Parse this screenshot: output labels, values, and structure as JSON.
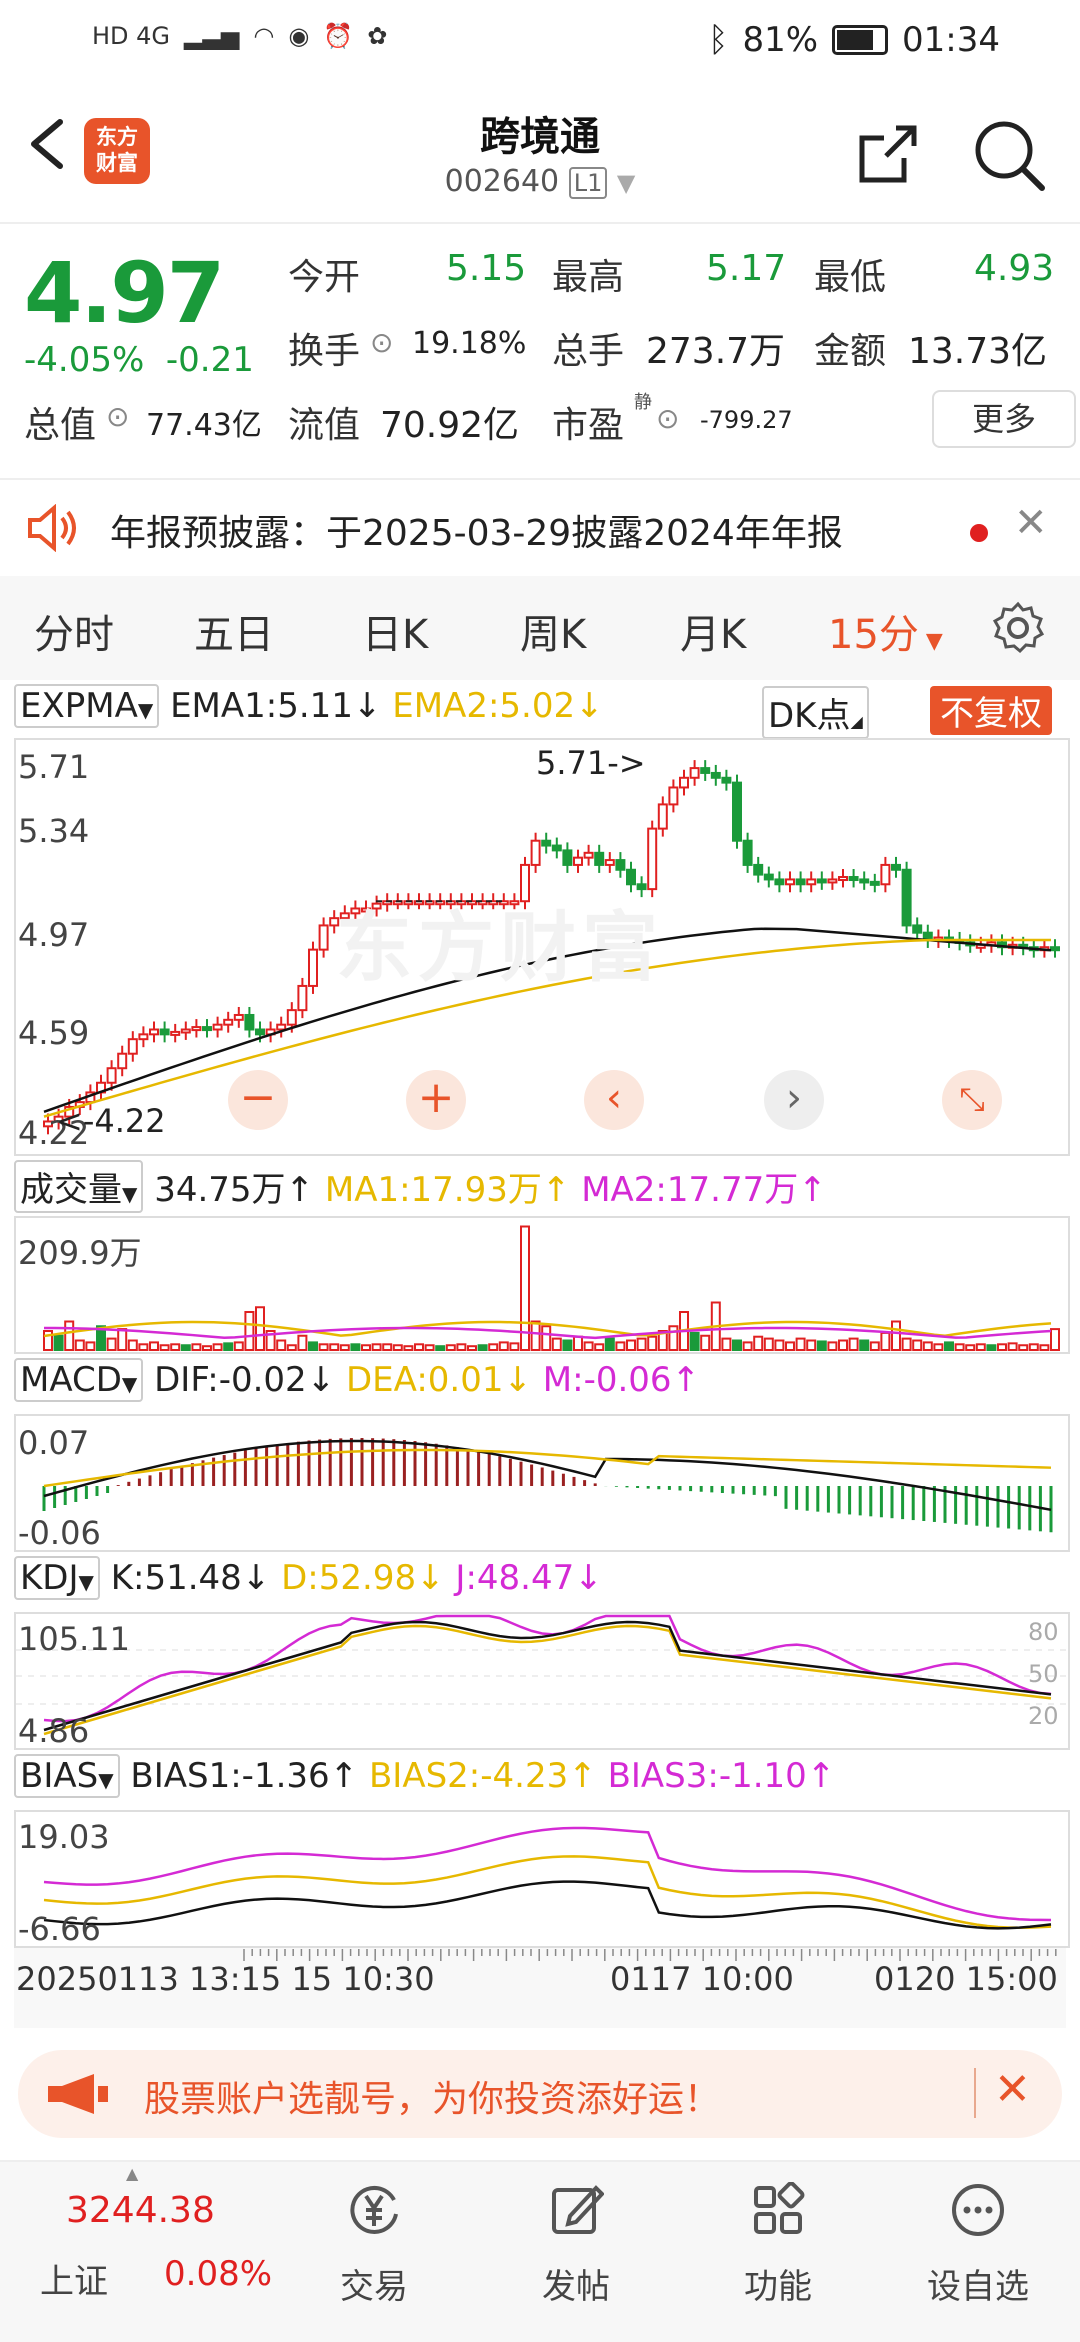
{
  "status": {
    "left_icons": "HD 4G",
    "battery": "81%",
    "time": "01:34"
  },
  "header": {
    "title": "跨境通",
    "code": "002640",
    "level": "L1",
    "logo_line1": "东方",
    "logo_line2": "财富"
  },
  "quote": {
    "price": "4.97",
    "pct": "-4.05%",
    "chg": "-0.21",
    "open_label": "今开",
    "open": "5.15",
    "high_label": "最高",
    "high": "5.17",
    "low_label": "最低",
    "low": "4.93",
    "turnover_label": "换手",
    "turnover": "19.18%",
    "volume_label": "总手",
    "volume": "273.7万",
    "amount_label": "金额",
    "amount": "13.73亿",
    "mktcap_label": "总值",
    "mktcap": "77.43亿",
    "float_label": "流值",
    "float": "70.92亿",
    "pe_label": "市盈",
    "pe_sup": "静",
    "pe": "-799.27",
    "more": "更多"
  },
  "notice": {
    "text": "年报预披露：于2025-03-29披露2024年年报"
  },
  "tabs": [
    "分时",
    "五日",
    "日K",
    "周K",
    "月K",
    "15分"
  ],
  "main_chart": {
    "indicator": "EXPMA",
    "ema1": "EMA1:5.11",
    "ema2": "EMA2:5.02",
    "dk": "DK点",
    "adjust": "不复权",
    "y_labels": [
      "5.71",
      "5.34",
      "4.97",
      "4.59",
      "4.22"
    ],
    "max_note": "5.71->",
    "min_note": "<-4.22"
  },
  "vol_chart": {
    "indicator": "成交量",
    "value": "34.75万",
    "ma1": "MA1:17.93万",
    "ma2": "MA2:17.77万",
    "y_label": "209.9万"
  },
  "macd_chart": {
    "indicator": "MACD",
    "dif": "DIF:-0.02",
    "dea": "DEA:0.01",
    "m": "M:-0.06",
    "y_top": "0.07",
    "y_bot": "-0.06"
  },
  "kdj_chart": {
    "indicator": "KDJ",
    "k": "K:51.48",
    "d": "D:52.98",
    "j": "J:48.47",
    "y_top": "105.11",
    "y_bot": "4.86",
    "r1": "80",
    "r2": "50",
    "r3": "20"
  },
  "bias_chart": {
    "indicator": "BIAS",
    "b1": "BIAS1:-1.36",
    "b2": "BIAS2:-4.23",
    "b3": "BIAS3:-1.10",
    "y_top": "19.03",
    "y_bot": "-6.66"
  },
  "time_axis": {
    "t1": "20250113 13:15",
    "t1b": "15 10:30",
    "t2": "0117 10:00",
    "t3": "0120 15:00"
  },
  "ad": {
    "text": "股票账户选靓号，为你投资添好运！"
  },
  "bottom": {
    "index_value": "3244.38",
    "index_name": "上证",
    "index_pct": "0.08%",
    "items": [
      "交易",
      "发帖",
      "功能",
      "设自选"
    ]
  },
  "colors": {
    "up": "#e02020",
    "down": "#1a9a3a",
    "accent": "#e8542a",
    "ema1": "#111111",
    "ema2": "#e6b800",
    "magenta": "#d42ad4"
  }
}
